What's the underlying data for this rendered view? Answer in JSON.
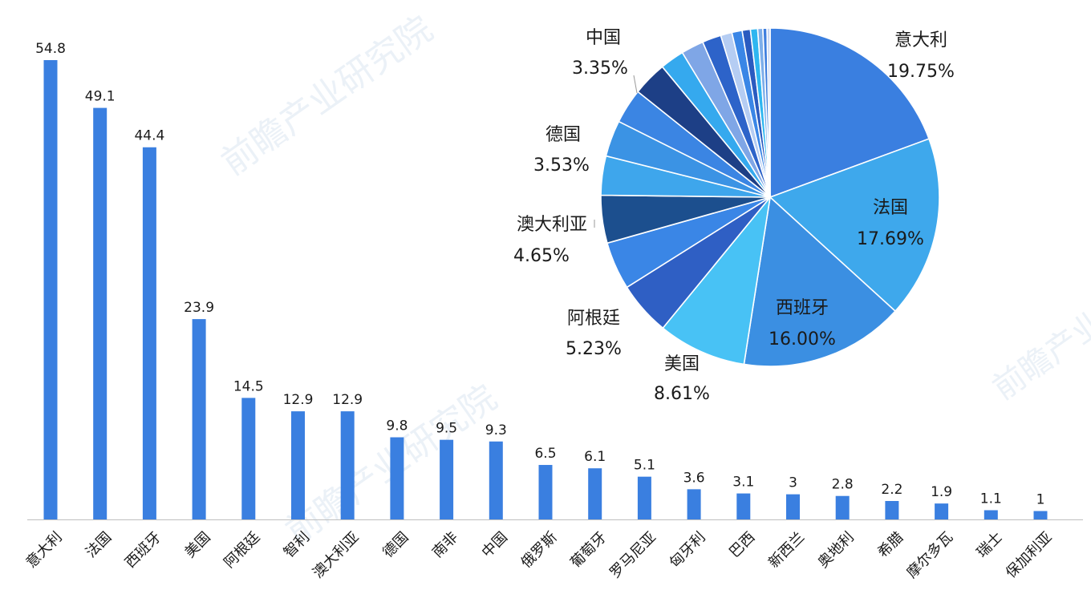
{
  "chart_data": [
    {
      "type": "bar",
      "categories": [
        "意大利",
        "法国",
        "西班牙",
        "美国",
        "阿根廷",
        "智利",
        "澳大利亚",
        "德国",
        "南非",
        "中国",
        "俄罗斯",
        "葡萄牙",
        "罗马尼亚",
        "匈牙利",
        "巴西",
        "新西兰",
        "奥地利",
        "希腊",
        "摩尔多瓦",
        "瑞士",
        "保加利亚"
      ],
      "values": [
        54.8,
        49.1,
        44.4,
        23.9,
        14.5,
        12.9,
        12.9,
        9.8,
        9.5,
        9.3,
        6.5,
        6.1,
        5.1,
        3.6,
        3.1,
        3,
        2.8,
        2.2,
        1.9,
        1.1,
        1
      ],
      "value_labels": [
        "54.8",
        "49.1",
        "44.4",
        "23.9",
        "14.5",
        "12.9",
        "12.9",
        "9.8",
        "9.5",
        "9.3",
        "6.5",
        "6.1",
        "5.1",
        "3.6",
        "3.1",
        "3",
        "2.8",
        "2.2",
        "1.9",
        "1.1",
        "1"
      ],
      "ylim": [
        0,
        56
      ],
      "color": "#3a7fe0",
      "grid": false
    },
    {
      "type": "pie",
      "slices": [
        {
          "name": "意大利",
          "value": 19.75,
          "label": "19.75%",
          "color": "#3a7fe0"
        },
        {
          "name": "法国",
          "value": 17.69,
          "label": "17.69%",
          "color": "#3ea8ec"
        },
        {
          "name": "西班牙",
          "value": 16.0,
          "label": "16.00%",
          "color": "#3b8fe2"
        },
        {
          "name": "美国",
          "value": 8.61,
          "label": "8.61%",
          "color": "#48c2f5"
        },
        {
          "name": "阿根廷",
          "value": 5.23,
          "label": "5.23%",
          "color": "#2f5fc4"
        },
        {
          "name": "",
          "value": 4.65,
          "label": "",
          "color": "#3a86e6"
        },
        {
          "name": "澳大利亚",
          "value": 4.65,
          "label": "4.65%",
          "color": "#1c4f8e"
        },
        {
          "name": "",
          "value": 3.8,
          "label": "",
          "color": "#3ea6ec"
        },
        {
          "name": "德国",
          "value": 3.53,
          "label": "3.53%",
          "color": "#3b93e4"
        },
        {
          "name": "",
          "value": 3.4,
          "label": "",
          "color": "#3b85e3"
        },
        {
          "name": "中国",
          "value": 3.35,
          "label": "3.35%",
          "color": "#1d3f86"
        },
        {
          "name": "",
          "value": 2.35,
          "label": "",
          "color": "#35a9ee"
        },
        {
          "name": "",
          "value": 2.2,
          "label": "",
          "color": "#7fa6e6"
        },
        {
          "name": "",
          "value": 1.84,
          "label": "",
          "color": "#2d63c9"
        },
        {
          "name": "",
          "value": 1.1,
          "label": "",
          "color": "#b5cdf3"
        },
        {
          "name": "",
          "value": 1.0,
          "label": "",
          "color": "#3a86e6"
        },
        {
          "name": "",
          "value": 0.8,
          "label": "",
          "color": "#2a5bc0"
        },
        {
          "name": "",
          "value": 0.7,
          "label": "",
          "color": "#2fb6f0"
        },
        {
          "name": "",
          "value": 0.5,
          "label": "",
          "color": "#7daeea"
        },
        {
          "name": "",
          "value": 0.4,
          "label": "",
          "color": "#3f7fde"
        },
        {
          "name": "",
          "value": 0.3,
          "label": "",
          "color": "#c7d6f2"
        }
      ]
    }
  ],
  "watermark": {
    "brand": "前瞻产业研究院",
    "color": "#dce6f2"
  }
}
